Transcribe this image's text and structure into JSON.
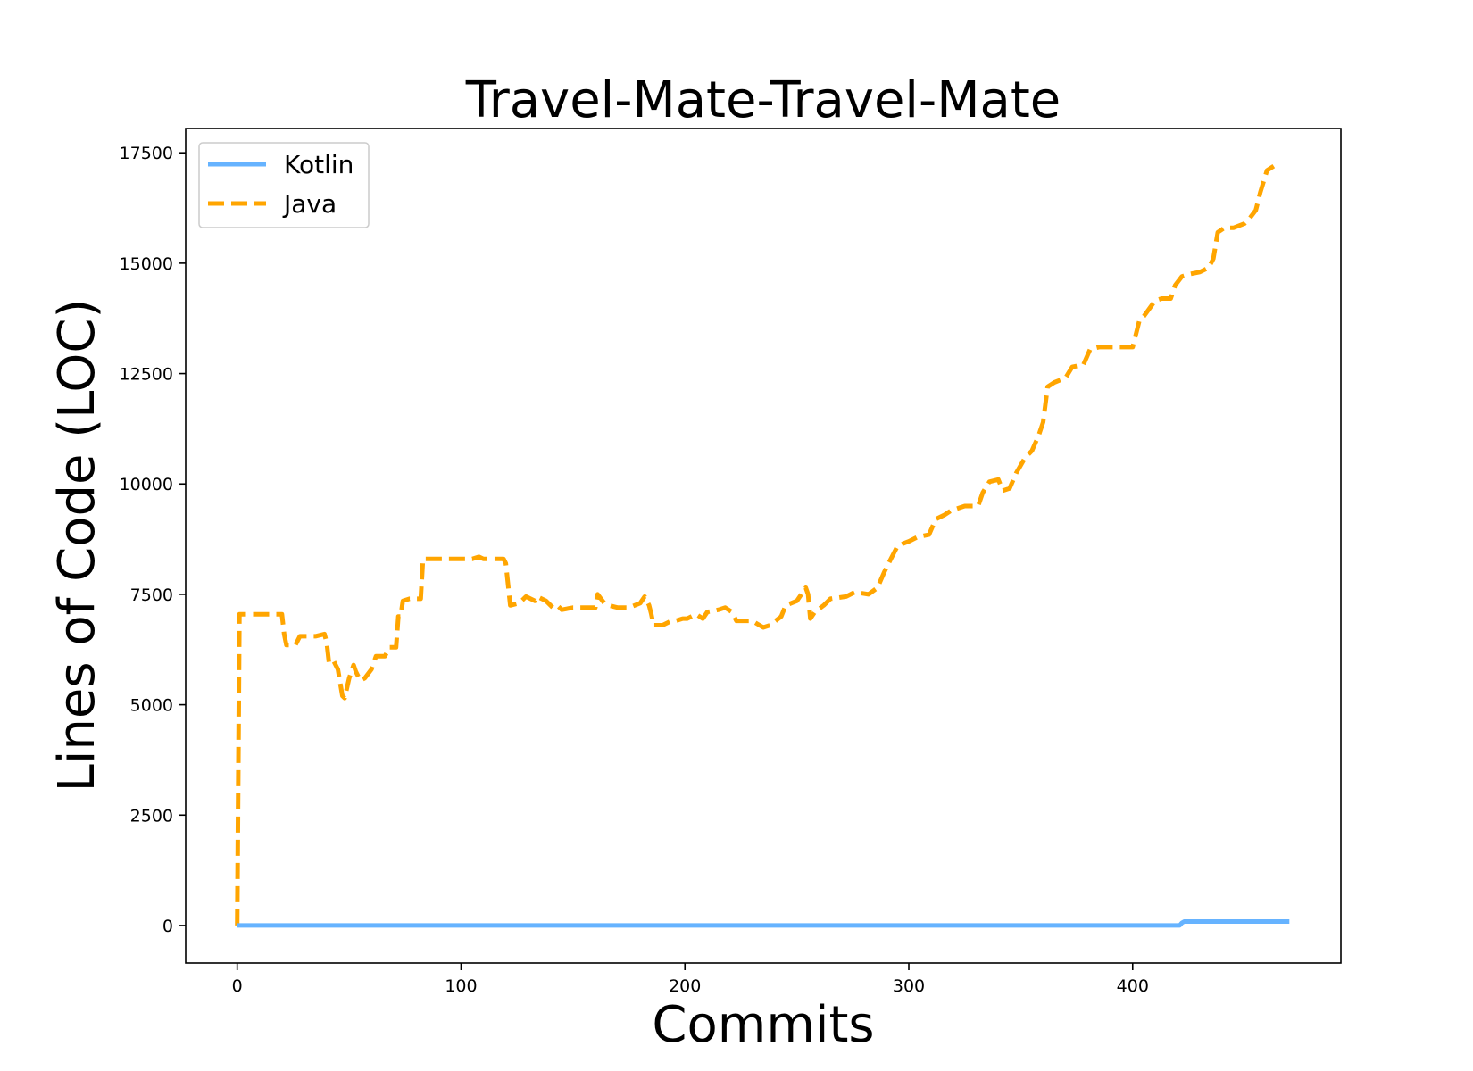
{
  "chart_data": {
    "type": "line",
    "title": "Travel-Mate-Travel-Mate",
    "xlabel": "Commits",
    "ylabel": "Lines of Code (LOC)",
    "xlim": [
      -23,
      493
    ],
    "ylim": [
      -850,
      18050
    ],
    "xticks": [
      0,
      100,
      200,
      300,
      400
    ],
    "yticks": [
      0,
      2500,
      5000,
      7500,
      10000,
      12500,
      15000,
      17500
    ],
    "legend_position": "top-left",
    "grid": false,
    "series": [
      {
        "name": "Kotlin",
        "color": "#66b3ff",
        "style": "solid",
        "points": [
          [
            0,
            0
          ],
          [
            421,
            0
          ],
          [
            422,
            60
          ],
          [
            423,
            90
          ],
          [
            470,
            90
          ]
        ]
      },
      {
        "name": "Java",
        "color": "#ffa500",
        "style": "dashed",
        "points": [
          [
            0,
            0
          ],
          [
            1,
            7050
          ],
          [
            20,
            7050
          ],
          [
            21,
            6600
          ],
          [
            22,
            6350
          ],
          [
            26,
            6350
          ],
          [
            28,
            6550
          ],
          [
            35,
            6550
          ],
          [
            39,
            6600
          ],
          [
            40,
            6400
          ],
          [
            41,
            5950
          ],
          [
            43,
            6000
          ],
          [
            45,
            5800
          ],
          [
            47,
            5200
          ],
          [
            48,
            5150
          ],
          [
            50,
            5600
          ],
          [
            52,
            5900
          ],
          [
            53,
            5750
          ],
          [
            55,
            5550
          ],
          [
            57,
            5600
          ],
          [
            60,
            5800
          ],
          [
            62,
            6100
          ],
          [
            66,
            6100
          ],
          [
            68,
            6300
          ],
          [
            71,
            6300
          ],
          [
            72,
            7000
          ],
          [
            73,
            7000
          ],
          [
            74,
            7350
          ],
          [
            77,
            7400
          ],
          [
            82,
            7400
          ],
          [
            83,
            8300
          ],
          [
            100,
            8300
          ],
          [
            105,
            8300
          ],
          [
            108,
            8350
          ],
          [
            110,
            8300
          ],
          [
            113,
            8300
          ],
          [
            116,
            8300
          ],
          [
            119,
            8300
          ],
          [
            120,
            8200
          ],
          [
            122,
            7250
          ],
          [
            126,
            7300
          ],
          [
            129,
            7450
          ],
          [
            133,
            7350
          ],
          [
            134,
            7450
          ],
          [
            138,
            7350
          ],
          [
            141,
            7200
          ],
          [
            143,
            7250
          ],
          [
            145,
            7150
          ],
          [
            150,
            7200
          ],
          [
            155,
            7200
          ],
          [
            160,
            7200
          ],
          [
            161,
            7500
          ],
          [
            164,
            7300
          ],
          [
            166,
            7250
          ],
          [
            170,
            7200
          ],
          [
            175,
            7200
          ],
          [
            180,
            7300
          ],
          [
            182,
            7450
          ],
          [
            184,
            7250
          ],
          [
            185,
            7050
          ],
          [
            186,
            6800
          ],
          [
            190,
            6800
          ],
          [
            194,
            6900
          ],
          [
            196,
            6900
          ],
          [
            199,
            6950
          ],
          [
            201,
            6950
          ],
          [
            205,
            7050
          ],
          [
            208,
            6950
          ],
          [
            210,
            7100
          ],
          [
            215,
            7150
          ],
          [
            218,
            7200
          ],
          [
            221,
            7100
          ],
          [
            223,
            6900
          ],
          [
            230,
            6900
          ],
          [
            235,
            6750
          ],
          [
            238,
            6800
          ],
          [
            243,
            7000
          ],
          [
            245,
            7250
          ],
          [
            250,
            7350
          ],
          [
            254,
            7650
          ],
          [
            255,
            7500
          ],
          [
            256,
            6950
          ],
          [
            258,
            7100
          ],
          [
            262,
            7250
          ],
          [
            265,
            7400
          ],
          [
            272,
            7450
          ],
          [
            276,
            7550
          ],
          [
            282,
            7500
          ],
          [
            286,
            7650
          ],
          [
            289,
            8000
          ],
          [
            292,
            8300
          ],
          [
            295,
            8600
          ],
          [
            300,
            8700
          ],
          [
            304,
            8800
          ],
          [
            309,
            8850
          ],
          [
            312,
            9200
          ],
          [
            316,
            9300
          ],
          [
            319,
            9400
          ],
          [
            325,
            9500
          ],
          [
            331,
            9500
          ],
          [
            333,
            9800
          ],
          [
            336,
            10050
          ],
          [
            340,
            10100
          ],
          [
            342,
            9850
          ],
          [
            345,
            9900
          ],
          [
            348,
            10250
          ],
          [
            352,
            10600
          ],
          [
            355,
            10750
          ],
          [
            358,
            11100
          ],
          [
            360,
            11400
          ],
          [
            362,
            12200
          ],
          [
            365,
            12300
          ],
          [
            370,
            12400
          ],
          [
            373,
            12650
          ],
          [
            378,
            12700
          ],
          [
            381,
            13050
          ],
          [
            385,
            13100
          ],
          [
            390,
            13100
          ],
          [
            395,
            13100
          ],
          [
            400,
            13100
          ],
          [
            403,
            13700
          ],
          [
            405,
            13800
          ],
          [
            410,
            14150
          ],
          [
            413,
            14200
          ],
          [
            417,
            14200
          ],
          [
            419,
            14500
          ],
          [
            422,
            14700
          ],
          [
            425,
            14750
          ],
          [
            430,
            14800
          ],
          [
            434,
            14900
          ],
          [
            436,
            15100
          ],
          [
            438,
            15700
          ],
          [
            441,
            15800
          ],
          [
            445,
            15800
          ],
          [
            450,
            15900
          ],
          [
            452,
            16000
          ],
          [
            455,
            16200
          ],
          [
            457,
            16600
          ],
          [
            460,
            17100
          ],
          [
            463,
            17200
          ]
        ]
      }
    ]
  }
}
